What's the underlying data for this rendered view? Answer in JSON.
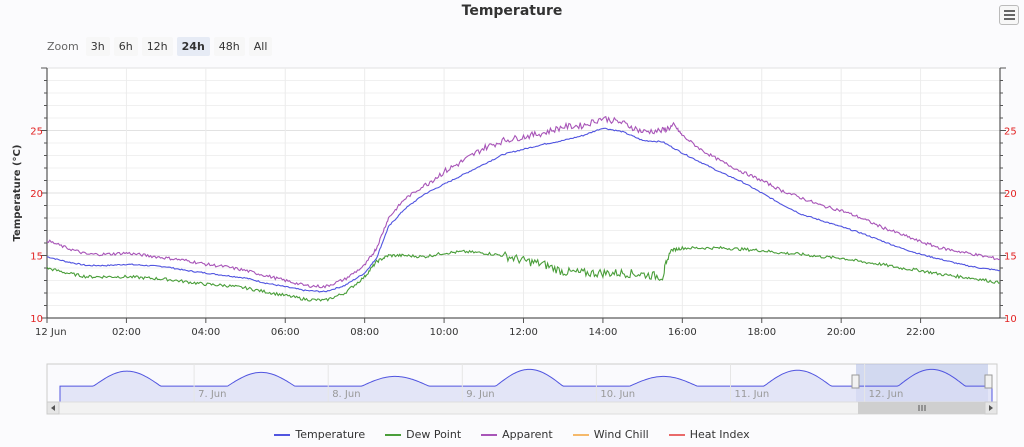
{
  "chart_title": "Temperature",
  "menu": {
    "icon": "hamburger-menu-icon"
  },
  "zoom": {
    "label": "Zoom",
    "buttons": [
      "3h",
      "6h",
      "12h",
      "24h",
      "48h",
      "All"
    ],
    "active": "24h"
  },
  "navigator": {
    "date_labels": [
      "7. Jun",
      "8. Jun",
      "9. Jun",
      "10. Jun",
      "11. Jun",
      "12. Jun"
    ],
    "scroll_left_icon": "arrow-left-icon",
    "scroll_right_icon": "arrow-right-icon",
    "handle_icon": "grip-lines-icon"
  },
  "colors": {
    "temperature": "#5155e0",
    "dew_point": "#4a9e3a",
    "apparent": "#a855b8",
    "wind_chill": "#f5b96b",
    "heat_index": "#e96a6a",
    "tick_red": "#e22222"
  },
  "chart_data": {
    "type": "line",
    "title": "Temperature",
    "ylabel": "Temperature (°C)",
    "xlabel": "",
    "ylim": [
      10,
      30
    ],
    "xlim": [
      0,
      24
    ],
    "yticks": [
      10,
      15,
      20,
      25
    ],
    "xticks": [
      {
        "x": 0,
        "label": "12 Jun"
      },
      {
        "x": 2,
        "label": "02:00"
      },
      {
        "x": 4,
        "label": "04:00"
      },
      {
        "x": 6,
        "label": "06:00"
      },
      {
        "x": 8,
        "label": "08:00"
      },
      {
        "x": 10,
        "label": "10:00"
      },
      {
        "x": 12,
        "label": "12:00"
      },
      {
        "x": 14,
        "label": "14:00"
      },
      {
        "x": 16,
        "label": "16:00"
      },
      {
        "x": 18,
        "label": "18:00"
      },
      {
        "x": 20,
        "label": "20:00"
      },
      {
        "x": 22,
        "label": "22:00"
      }
    ],
    "grid": true,
    "legend_position": "bottom",
    "series": [
      {
        "name": "Temperature",
        "color": "#5155e0",
        "points": [
          [
            0,
            14.9
          ],
          [
            0.5,
            14.5
          ],
          [
            1,
            14.2
          ],
          [
            1.5,
            14.2
          ],
          [
            2,
            14.3
          ],
          [
            2.5,
            14.2
          ],
          [
            3,
            14.1
          ],
          [
            3.5,
            13.8
          ],
          [
            4,
            13.6
          ],
          [
            4.5,
            13.4
          ],
          [
            5,
            13.2
          ],
          [
            5.5,
            12.8
          ],
          [
            6,
            12.5
          ],
          [
            6.5,
            12.2
          ],
          [
            7,
            12.1
          ],
          [
            7.5,
            12.6
          ],
          [
            8,
            13.6
          ],
          [
            8.3,
            14.8
          ],
          [
            8.6,
            17.3
          ],
          [
            9,
            18.7
          ],
          [
            9.5,
            19.9
          ],
          [
            10,
            20.7
          ],
          [
            10.5,
            21.5
          ],
          [
            11,
            22.3
          ],
          [
            11.5,
            23.1
          ],
          [
            12,
            23.5
          ],
          [
            12.5,
            23.9
          ],
          [
            13,
            24.2
          ],
          [
            13.5,
            24.6
          ],
          [
            14,
            25.2
          ],
          [
            14.5,
            24.9
          ],
          [
            15,
            24.2
          ],
          [
            15.5,
            24.1
          ],
          [
            16,
            23.2
          ],
          [
            16.5,
            22.4
          ],
          [
            17,
            21.6
          ],
          [
            17.5,
            20.9
          ],
          [
            18,
            20.0
          ],
          [
            18.5,
            19.1
          ],
          [
            19,
            18.3
          ],
          [
            19.5,
            17.8
          ],
          [
            20,
            17.3
          ],
          [
            20.5,
            16.8
          ],
          [
            21,
            16.2
          ],
          [
            21.5,
            15.6
          ],
          [
            22,
            15.1
          ],
          [
            22.5,
            14.7
          ],
          [
            23,
            14.3
          ],
          [
            23.5,
            14.0
          ],
          [
            24,
            13.8
          ]
        ]
      },
      {
        "name": "Dew Point",
        "color": "#4a9e3a",
        "points": [
          [
            0,
            14.0
          ],
          [
            0.5,
            13.6
          ],
          [
            1,
            13.3
          ],
          [
            1.5,
            13.3
          ],
          [
            2,
            13.3
          ],
          [
            2.5,
            13.2
          ],
          [
            3,
            13.1
          ],
          [
            3.5,
            12.9
          ],
          [
            4,
            12.7
          ],
          [
            4.5,
            12.6
          ],
          [
            5,
            12.4
          ],
          [
            5.5,
            12.1
          ],
          [
            6,
            11.8
          ],
          [
            6.5,
            11.5
          ],
          [
            7,
            11.4
          ],
          [
            7.5,
            12.0
          ],
          [
            8,
            13.3
          ],
          [
            8.3,
            14.5
          ],
          [
            8.6,
            15.0
          ],
          [
            9,
            15.0
          ],
          [
            9.5,
            14.9
          ],
          [
            10,
            15.2
          ],
          [
            10.5,
            15.3
          ],
          [
            11,
            15.2
          ],
          [
            11.5,
            15.0
          ],
          [
            12,
            14.6
          ],
          [
            12.5,
            14.3
          ],
          [
            13,
            13.7
          ],
          [
            13.5,
            13.6
          ],
          [
            14,
            13.6
          ],
          [
            14.5,
            13.6
          ],
          [
            15,
            13.5
          ],
          [
            15.5,
            13.3
          ],
          [
            15.7,
            15.4
          ],
          [
            16,
            15.6
          ],
          [
            16.5,
            15.6
          ],
          [
            17,
            15.6
          ],
          [
            17.5,
            15.5
          ],
          [
            18,
            15.4
          ],
          [
            18.5,
            15.2
          ],
          [
            19,
            15.1
          ],
          [
            19.5,
            14.9
          ],
          [
            20,
            14.8
          ],
          [
            20.5,
            14.5
          ],
          [
            21,
            14.3
          ],
          [
            21.5,
            14.0
          ],
          [
            22,
            13.8
          ],
          [
            22.5,
            13.5
          ],
          [
            23,
            13.3
          ],
          [
            23.5,
            13.1
          ],
          [
            24,
            12.8
          ]
        ]
      },
      {
        "name": "Apparent",
        "color": "#a855b8",
        "points": [
          [
            0,
            16.2
          ],
          [
            0.5,
            15.6
          ],
          [
            1,
            15.1
          ],
          [
            1.5,
            15.1
          ],
          [
            2,
            15.2
          ],
          [
            2.5,
            15.0
          ],
          [
            3,
            14.8
          ],
          [
            3.5,
            14.6
          ],
          [
            4,
            14.3
          ],
          [
            4.5,
            14.1
          ],
          [
            5,
            13.8
          ],
          [
            5.5,
            13.4
          ],
          [
            6,
            13.0
          ],
          [
            6.5,
            12.6
          ],
          [
            7,
            12.5
          ],
          [
            7.5,
            13.1
          ],
          [
            8,
            14.2
          ],
          [
            8.3,
            15.6
          ],
          [
            8.6,
            18.0
          ],
          [
            9,
            19.5
          ],
          [
            9.5,
            20.6
          ],
          [
            10,
            21.7
          ],
          [
            10.5,
            22.6
          ],
          [
            11,
            23.6
          ],
          [
            11.5,
            24.2
          ],
          [
            12,
            24.5
          ],
          [
            12.5,
            24.8
          ],
          [
            13,
            25.3
          ],
          [
            13.5,
            25.4
          ],
          [
            14,
            26.0
          ],
          [
            14.5,
            25.6
          ],
          [
            15,
            24.9
          ],
          [
            15.5,
            25.0
          ],
          [
            15.8,
            25.4
          ],
          [
            16,
            24.6
          ],
          [
            16.5,
            23.4
          ],
          [
            17,
            22.5
          ],
          [
            17.5,
            21.7
          ],
          [
            18,
            21.0
          ],
          [
            18.5,
            20.2
          ],
          [
            19,
            19.6
          ],
          [
            19.5,
            19.0
          ],
          [
            20,
            18.6
          ],
          [
            20.5,
            18.0
          ],
          [
            21,
            17.3
          ],
          [
            21.5,
            16.7
          ],
          [
            22,
            16.1
          ],
          [
            22.5,
            15.6
          ],
          [
            23,
            15.3
          ],
          [
            23.5,
            15.0
          ],
          [
            24,
            14.7
          ]
        ]
      },
      {
        "name": "Wind Chill",
        "color": "#f5b96b",
        "points": []
      },
      {
        "name": "Heat Index",
        "color": "#e96a6a",
        "points": []
      }
    ]
  }
}
